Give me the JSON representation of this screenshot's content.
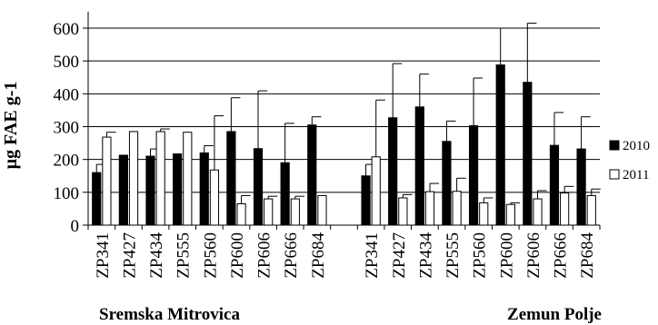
{
  "chart_data": {
    "type": "bar",
    "ylabel": "µg FAE g-1",
    "ylim": [
      0,
      650
    ],
    "yticks": [
      0,
      100,
      200,
      300,
      400,
      500,
      600
    ],
    "grid": true,
    "legend_position": "right",
    "groups": [
      {
        "name": "Sremska Mitrovica",
        "categories": [
          "ZP341",
          "ZP427",
          "ZP434",
          "ZP555",
          "ZP560",
          "ZP600",
          "ZP606",
          "ZP666",
          "ZP684"
        ],
        "series": [
          {
            "name": "2010",
            "values": [
              160,
              213,
              210,
              217,
              220,
              285,
              233,
              190,
              305
            ],
            "errors": [
              25,
              0,
              22,
              0,
              22,
              103,
              176,
              120,
              25
            ]
          },
          {
            "name": "2011",
            "values": [
              268,
              285,
              285,
              283,
              168,
              65,
              80,
              80,
              90
            ],
            "errors": [
              15,
              0,
              8,
              0,
              165,
              25,
              8,
              8,
              0
            ]
          }
        ]
      },
      {
        "name": "Zemun Polje",
        "categories": [
          "ZP341",
          "ZP427",
          "ZP434",
          "ZP555",
          "ZP560",
          "ZP600",
          "ZP606",
          "ZP666",
          "ZP684"
        ],
        "series": [
          {
            "name": "2010",
            "values": [
              150,
              327,
              360,
              255,
              303,
              488,
              435,
              243,
              232
            ],
            "errors": [
              35,
              165,
              100,
              62,
              145,
              112,
              180,
              100,
              98
            ]
          },
          {
            "name": "2011",
            "values": [
              208,
              83,
              102,
              103,
              68,
              63,
              80,
              98,
              90
            ],
            "errors": [
              173,
              10,
              25,
              40,
              15,
              5,
              25,
              20,
              20
            ]
          }
        ]
      }
    ],
    "colors": {
      "2010": "#000000",
      "2011": "#ffffff",
      "outline": "#000000",
      "grid": "#000000"
    }
  }
}
